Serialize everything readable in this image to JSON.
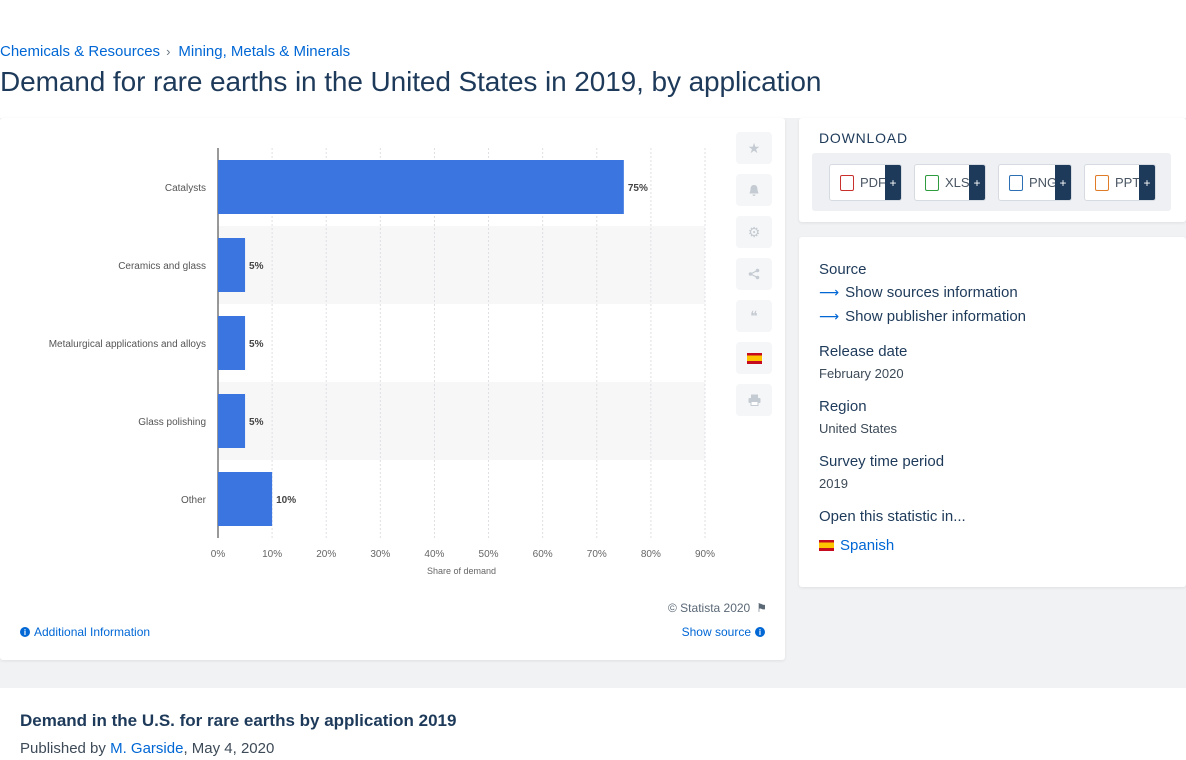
{
  "breadcrumb": [
    "Chemicals & Resources",
    "Mining, Metals & Minerals"
  ],
  "page_title": "Demand for rare earths in the United States in 2019, by application",
  "chart_data": {
    "type": "bar",
    "orientation": "horizontal",
    "categories": [
      "Catalysts",
      "Ceramics and glass",
      "Metalurgical applications and alloys",
      "Glass polishing",
      "Other"
    ],
    "values": [
      75,
      5,
      5,
      5,
      10
    ],
    "data_labels": [
      "75%",
      "5%",
      "5%",
      "5%",
      "10%"
    ],
    "x_ticks": [
      "0%",
      "10%",
      "20%",
      "30%",
      "40%",
      "50%",
      "60%",
      "70%",
      "80%",
      "90%"
    ],
    "xlabel": "Share of demand",
    "xlim": [
      0,
      90
    ],
    "bar_color": "#3a75e0",
    "grid": true
  },
  "chart_footer": {
    "copyright": "© Statista 2020",
    "additional_info": "Additional Information",
    "show_source": "Show source"
  },
  "download": {
    "title": "DOWNLOAD",
    "formats": [
      "PDF",
      "XLS",
      "PNG",
      "PPT"
    ],
    "plus": "+"
  },
  "meta": {
    "source_label": "Source",
    "show_sources": "Show sources information",
    "show_publisher": "Show publisher information",
    "release_label": "Release date",
    "release_value": "February 2020",
    "region_label": "Region",
    "region_value": "United States",
    "survey_label": "Survey time period",
    "survey_value": "2019",
    "open_label": "Open this statistic in...",
    "language": "Spanish"
  },
  "bottom": {
    "title": "Demand in the U.S. for rare earths by application 2019",
    "published_prefix": "Published by",
    "author": "M. Garside",
    "date": ", May 4, 2020"
  }
}
